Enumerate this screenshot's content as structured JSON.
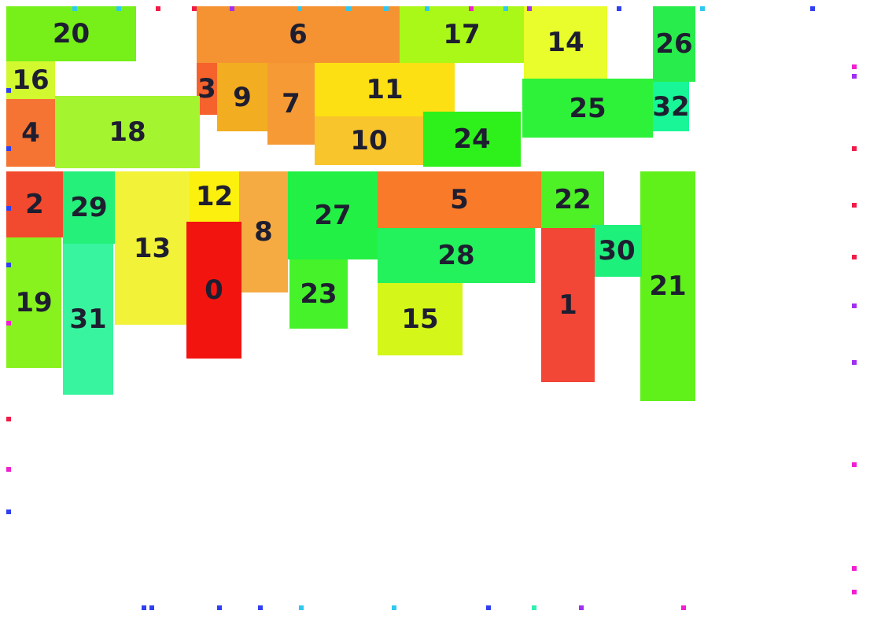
{
  "blocks": [
    {
      "label": "0",
      "color": "#f2140f"
    },
    {
      "label": "1",
      "color": "#f24636"
    },
    {
      "label": "2",
      "color": "#f24a2e"
    },
    {
      "label": "3",
      "color": "#f5622c"
    },
    {
      "label": "4",
      "color": "#f57433"
    },
    {
      "label": "5",
      "color": "#f97b2a"
    },
    {
      "label": "6",
      "color": "#f59232"
    },
    {
      "label": "7",
      "color": "#f59a35"
    },
    {
      "label": "8",
      "color": "#f5ab42"
    },
    {
      "label": "9",
      "color": "#f2ad20"
    },
    {
      "label": "10",
      "color": "#f9c52c"
    },
    {
      "label": "11",
      "color": "#fde014"
    },
    {
      "label": "12",
      "color": "#fbf00e"
    },
    {
      "label": "13",
      "color": "#f2f238"
    },
    {
      "label": "14",
      "color": "#e9fc2c"
    },
    {
      "label": "15",
      "color": "#d4f618"
    },
    {
      "label": "16",
      "color": "#d2f830"
    },
    {
      "label": "17",
      "color": "#aaf818"
    },
    {
      "label": "18",
      "color": "#a4f430"
    },
    {
      "label": "19",
      "color": "#88f21e"
    },
    {
      "label": "20",
      "color": "#76f018"
    },
    {
      "label": "21",
      "color": "#60f01a"
    },
    {
      "label": "22",
      "color": "#4ef026"
    },
    {
      "label": "23",
      "color": "#46f22a"
    },
    {
      "label": "24",
      "color": "#2ef01a"
    },
    {
      "label": "25",
      "color": "#2ef23a"
    },
    {
      "label": "26",
      "color": "#28ec4c"
    },
    {
      "label": "27",
      "color": "#22f044"
    },
    {
      "label": "28",
      "color": "#24f25c"
    },
    {
      "label": "29",
      "color": "#24f07a"
    },
    {
      "label": "30",
      "color": "#1ef07c"
    },
    {
      "label": "31",
      "color": "#38f49e"
    },
    {
      "label": "32",
      "color": "#18f698"
    }
  ],
  "dot_colors": {
    "red": "#f01c48",
    "magenta": "#f020d0",
    "purple": "#a030f0",
    "blue": "#3040f0",
    "cyan": "#30c8f0",
    "teal": "#30f0b0"
  }
}
